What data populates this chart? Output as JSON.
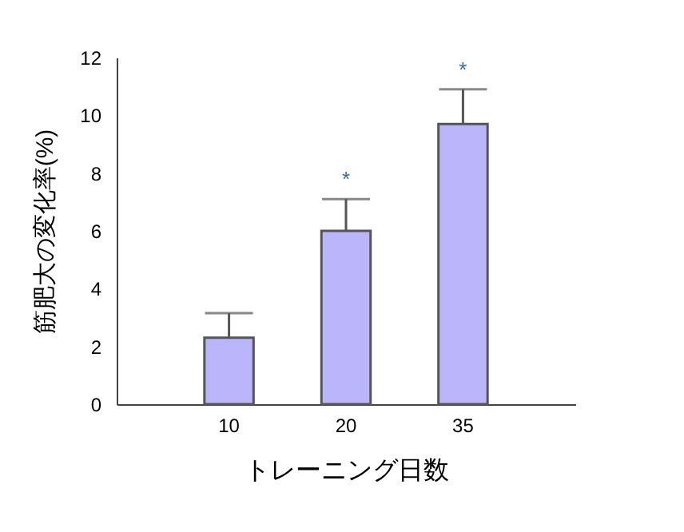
{
  "chart_data": {
    "type": "bar",
    "xlabel": "トレーニング日数",
    "ylabel": "筋肥大の変化率(%)",
    "categories": [
      "10",
      "20",
      "35"
    ],
    "values": [
      2.3,
      6.0,
      9.7
    ],
    "errors": [
      [
        2.3,
        3.15
      ],
      [
        6.0,
        7.1
      ],
      [
        9.7,
        10.9
      ]
    ],
    "color": "#bbb5fb",
    "ylim": [
      0,
      12
    ],
    "yticks": [
      0,
      2,
      4,
      6,
      8,
      10,
      12
    ],
    "grid": false,
    "annotations": [
      {
        "text": "*",
        "x": "20",
        "y": 7.1
      },
      {
        "text": "*",
        "x": "35",
        "y": 10.9
      }
    ]
  }
}
